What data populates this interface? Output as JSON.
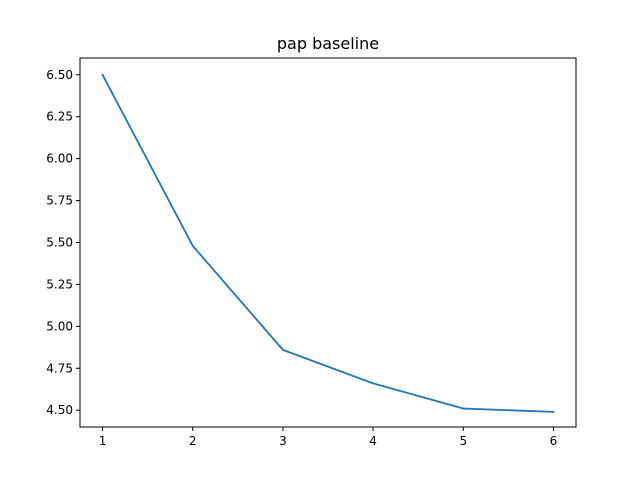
{
  "chart_data": {
    "type": "line",
    "title": "pap baseline",
    "xlabel": "",
    "ylabel": "",
    "x": [
      1,
      2,
      3,
      4,
      5,
      6
    ],
    "xticks": [
      "1",
      "2",
      "3",
      "4",
      "5",
      "6"
    ],
    "yticks": [
      "4.50",
      "4.75",
      "5.00",
      "5.25",
      "5.50",
      "5.75",
      "6.00",
      "6.25",
      "6.50"
    ],
    "xlim": [
      0.75,
      6.25
    ],
    "ylim": [
      4.4,
      6.6
    ],
    "grid": false,
    "series": [
      {
        "values": [
          6.5,
          5.48,
          4.86,
          4.66,
          4.51,
          4.49
        ],
        "color": "#1f77b4"
      }
    ]
  }
}
